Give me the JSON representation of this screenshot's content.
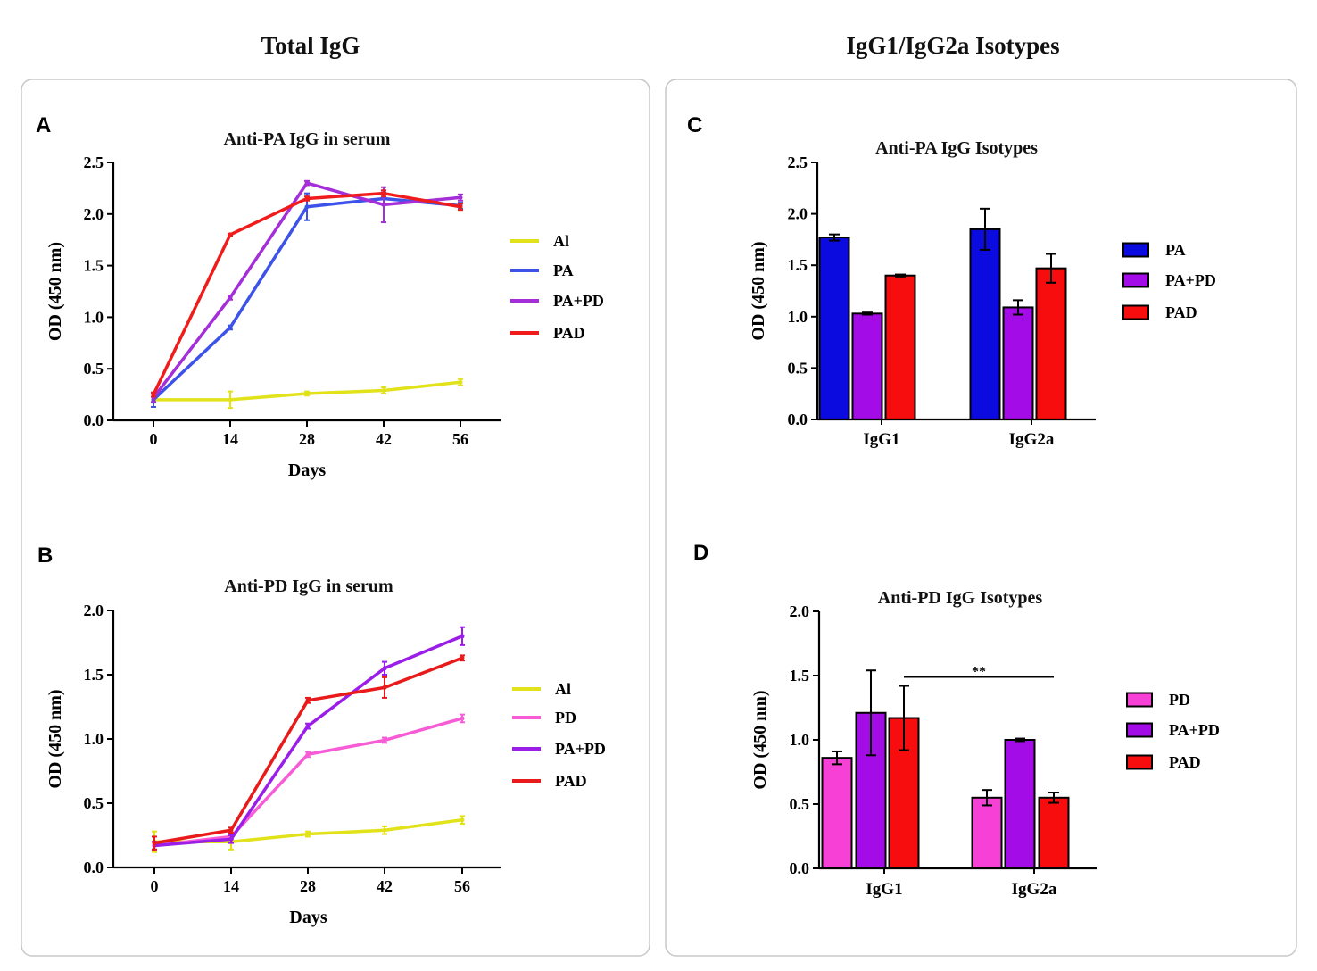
{
  "headers": {
    "left": "Total IgG",
    "right": "IgG1/IgG2a Isotypes"
  },
  "chart_data": [
    {
      "id": "A",
      "panel_label": "A",
      "type": "line",
      "title": "Anti-PA IgG in serum",
      "xlabel": "Days",
      "ylabel": "OD (450 nm)",
      "x": [
        0,
        14,
        28,
        42,
        56
      ],
      "xticks": [
        "0",
        "14",
        "28",
        "42",
        "56"
      ],
      "ylim": [
        0,
        2.5
      ],
      "yticks": [
        "0.0",
        "0.5",
        "1.0",
        "1.5",
        "2.0",
        "2.5"
      ],
      "series": [
        {
          "name": "Al",
          "color": "#e2e21a",
          "values": [
            0.2,
            0.2,
            0.26,
            0.29,
            0.37
          ],
          "errors": [
            0.03,
            0.08,
            0.02,
            0.03,
            0.03
          ]
        },
        {
          "name": "PA",
          "color": "#3d52e8",
          "values": [
            0.2,
            0.9,
            2.07,
            2.15,
            2.08
          ],
          "errors": [
            0.07,
            0.02,
            0.13,
            0.06,
            0.03
          ]
        },
        {
          "name": "PA+PD",
          "color": "#a42ed8",
          "values": [
            0.22,
            1.19,
            2.3,
            2.09,
            2.16
          ],
          "errors": [
            0.04,
            0.02,
            0.02,
            0.17,
            0.03
          ]
        },
        {
          "name": "PAD",
          "color": "#f01c1c",
          "values": [
            0.25,
            1.8,
            2.15,
            2.2,
            2.07
          ],
          "errors": [
            0.02,
            0.01,
            0.02,
            0.03,
            0.03
          ]
        }
      ]
    },
    {
      "id": "B",
      "panel_label": "B",
      "type": "line",
      "title": "Anti-PD IgG in serum",
      "xlabel": "Days",
      "ylabel": "OD (450 nm)",
      "x": [
        0,
        14,
        28,
        42,
        56
      ],
      "xticks": [
        "0",
        "14",
        "28",
        "42",
        "56"
      ],
      "ylim": [
        0,
        2.0
      ],
      "yticks": [
        "0.0",
        "0.5",
        "1.0",
        "1.5",
        "2.0"
      ],
      "series": [
        {
          "name": "Al",
          "color": "#e2e21a",
          "values": [
            0.2,
            0.2,
            0.26,
            0.29,
            0.37
          ],
          "errors": [
            0.08,
            0.06,
            0.02,
            0.03,
            0.03
          ]
        },
        {
          "name": "PD",
          "color": "#f75bd6",
          "values": [
            0.17,
            0.24,
            0.88,
            0.99,
            1.16
          ],
          "errors": [
            0.03,
            0.02,
            0.02,
            0.02,
            0.03
          ]
        },
        {
          "name": "PA+PD",
          "color": "#9b1ee8",
          "values": [
            0.17,
            0.22,
            1.1,
            1.55,
            1.8
          ],
          "errors": [
            0.03,
            0.03,
            0.02,
            0.05,
            0.07
          ]
        },
        {
          "name": "PAD",
          "color": "#e81a1a",
          "values": [
            0.19,
            0.29,
            1.3,
            1.4,
            1.63
          ],
          "errors": [
            0.05,
            0.02,
            0.02,
            0.08,
            0.02
          ]
        }
      ]
    },
    {
      "id": "C",
      "panel_label": "C",
      "type": "bar",
      "title": "Anti-PA IgG Isotypes",
      "xlabel": "",
      "ylabel": "OD (450 nm)",
      "categories": [
        "IgG1",
        "IgG2a"
      ],
      "ylim": [
        0,
        2.5
      ],
      "yticks": [
        "0.0",
        "0.5",
        "1.0",
        "1.5",
        "2.0",
        "2.5"
      ],
      "series": [
        {
          "name": "PA",
          "color": "#0b0be0",
          "values": [
            1.77,
            1.85
          ],
          "errors": [
            0.03,
            0.2
          ]
        },
        {
          "name": "PA+PD",
          "color": "#a30ce6",
          "values": [
            1.03,
            1.09
          ],
          "errors": [
            0.01,
            0.07
          ]
        },
        {
          "name": "PAD",
          "color": "#f70d0d",
          "values": [
            1.4,
            1.47
          ],
          "errors": [
            0.01,
            0.14
          ]
        }
      ]
    },
    {
      "id": "D",
      "panel_label": "D",
      "type": "bar",
      "title": "Anti-PD IgG Isotypes",
      "xlabel": "",
      "ylabel": "OD (450 nm)",
      "categories": [
        "IgG1",
        "IgG2a"
      ],
      "ylim": [
        0,
        2.0
      ],
      "yticks": [
        "0.0",
        "0.5",
        "1.0",
        "1.5",
        "2.0"
      ],
      "series": [
        {
          "name": "PD",
          "color": "#f740d5",
          "values": [
            0.86,
            0.55
          ],
          "errors": [
            0.05,
            0.06
          ]
        },
        {
          "name": "PA+PD",
          "color": "#a30ce6",
          "values": [
            1.21,
            1.0
          ],
          "errors": [
            0.33,
            0.01
          ]
        },
        {
          "name": "PAD",
          "color": "#f70d0d",
          "values": [
            1.17,
            0.55
          ],
          "errors": [
            0.25,
            0.04
          ]
        }
      ],
      "annotation": {
        "text": "**",
        "from": [
          "IgG1",
          "PAD"
        ],
        "to": [
          "IgG2a",
          "PAD"
        ],
        "y": 1.49
      }
    }
  ]
}
